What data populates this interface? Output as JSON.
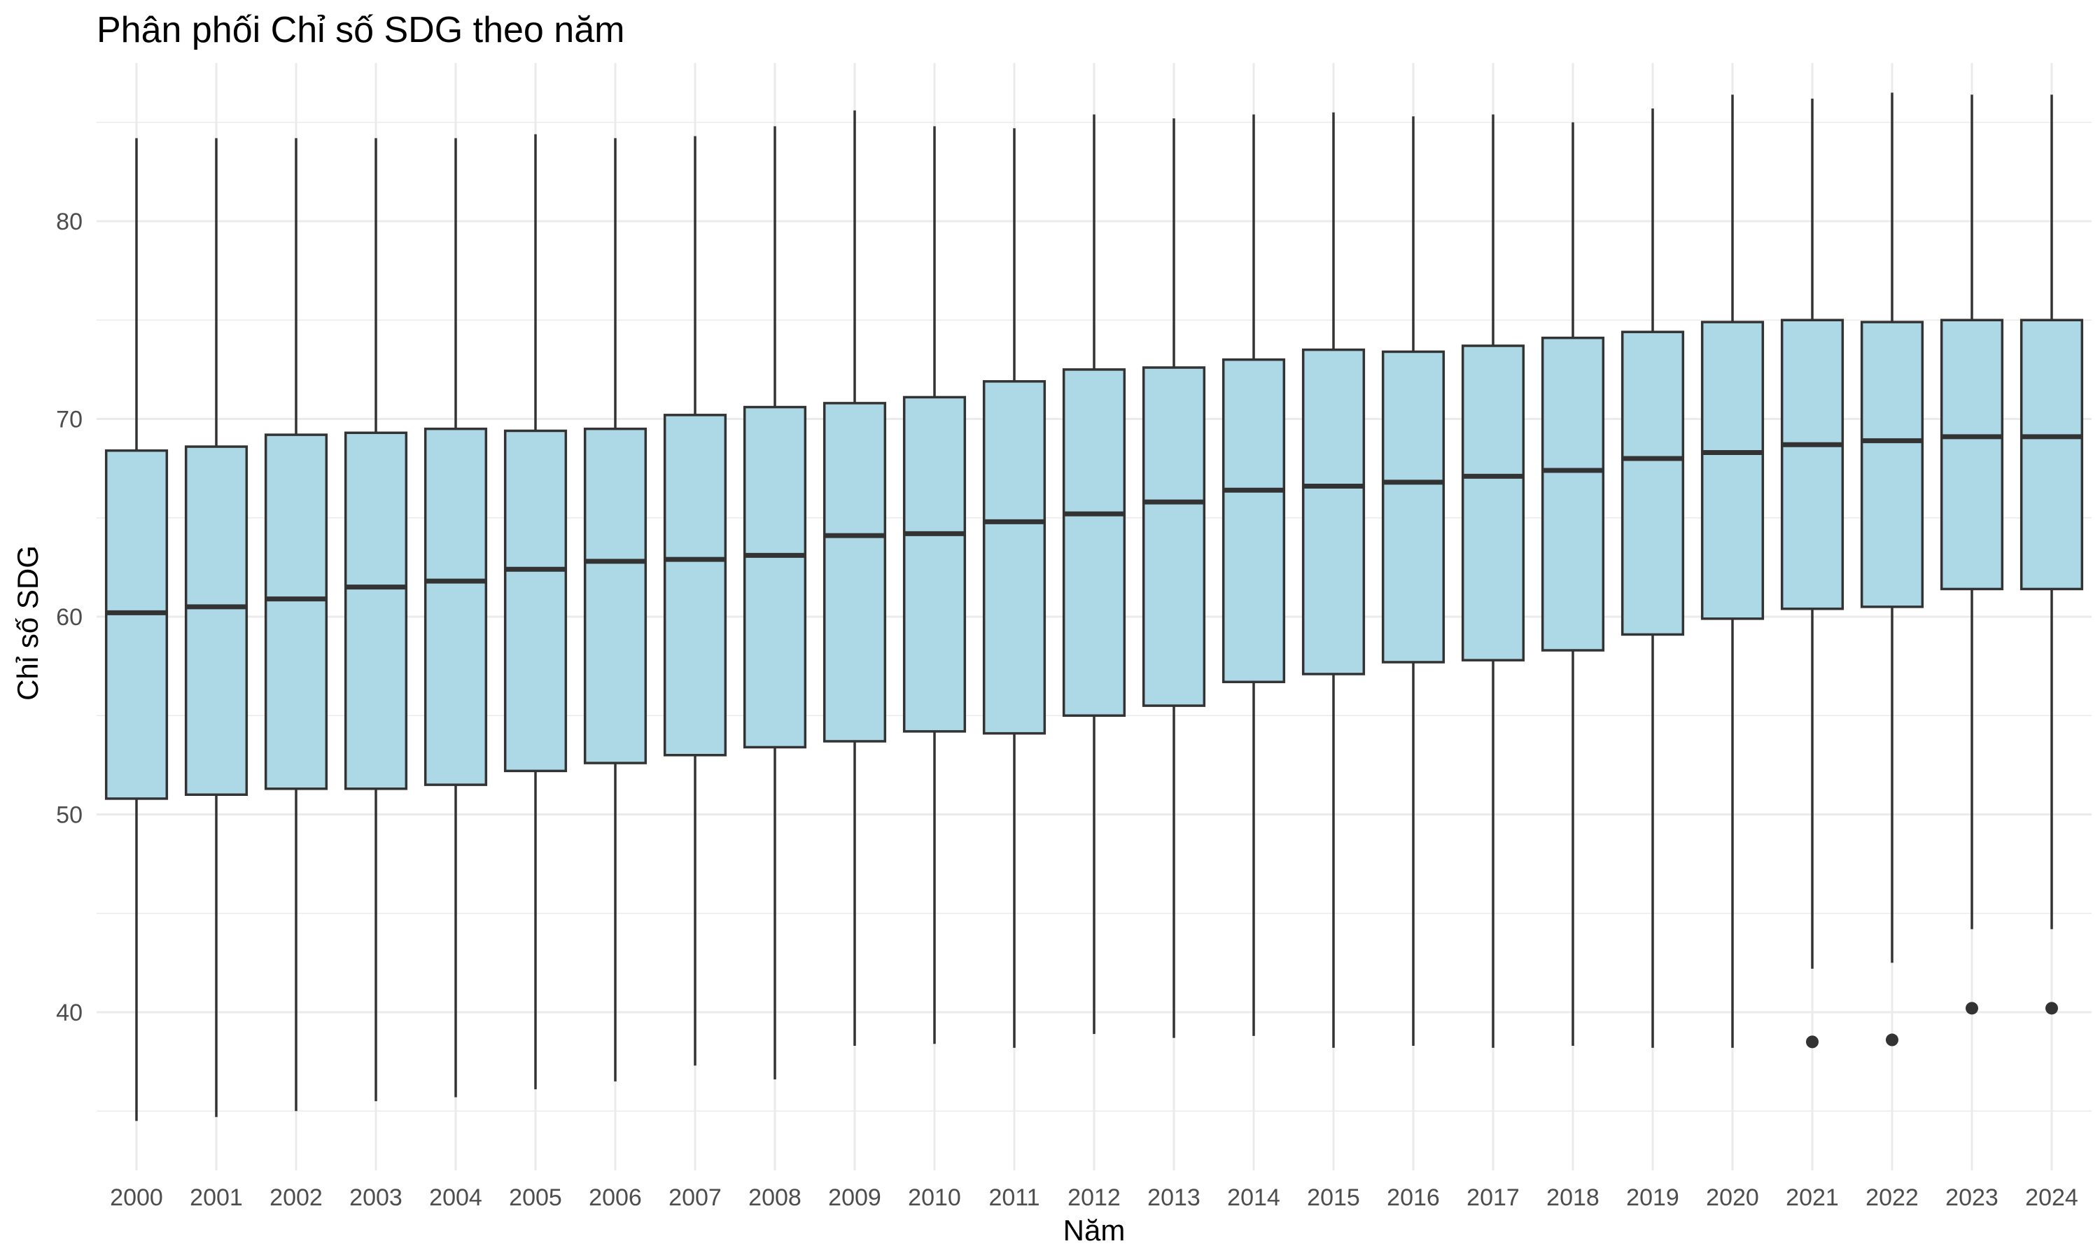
{
  "chart_data": {
    "type": "box",
    "title": "Phân phối Chỉ số SDG theo năm",
    "xlabel": "Năm",
    "ylabel": "Chỉ số SDG",
    "ylim": [
      32,
      88
    ],
    "y_ticks": [
      40,
      50,
      60,
      70,
      80
    ],
    "grid": true,
    "colors": {
      "box_fill": "#add8e6",
      "box_stroke": "#333333",
      "grid": "#ebebeb"
    },
    "categories": [
      "2000",
      "2001",
      "2002",
      "2003",
      "2004",
      "2005",
      "2006",
      "2007",
      "2008",
      "2009",
      "2010",
      "2011",
      "2012",
      "2013",
      "2014",
      "2015",
      "2016",
      "2017",
      "2018",
      "2019",
      "2020",
      "2021",
      "2022",
      "2023",
      "2024"
    ],
    "boxes": [
      {
        "min": 34.5,
        "q1": 50.8,
        "median": 60.2,
        "q3": 68.4,
        "max": 84.2,
        "outliers": []
      },
      {
        "min": 34.7,
        "q1": 51.0,
        "median": 60.5,
        "q3": 68.6,
        "max": 84.2,
        "outliers": []
      },
      {
        "min": 35.0,
        "q1": 51.3,
        "median": 60.9,
        "q3": 69.2,
        "max": 84.2,
        "outliers": []
      },
      {
        "min": 35.5,
        "q1": 51.3,
        "median": 61.5,
        "q3": 69.3,
        "max": 84.2,
        "outliers": []
      },
      {
        "min": 35.7,
        "q1": 51.5,
        "median": 61.8,
        "q3": 69.5,
        "max": 84.2,
        "outliers": []
      },
      {
        "min": 36.1,
        "q1": 52.2,
        "median": 62.4,
        "q3": 69.4,
        "max": 84.4,
        "outliers": []
      },
      {
        "min": 36.5,
        "q1": 52.6,
        "median": 62.8,
        "q3": 69.5,
        "max": 84.2,
        "outliers": []
      },
      {
        "min": 37.3,
        "q1": 53.0,
        "median": 62.9,
        "q3": 70.2,
        "max": 84.3,
        "outliers": []
      },
      {
        "min": 36.6,
        "q1": 53.4,
        "median": 63.1,
        "q3": 70.6,
        "max": 84.8,
        "outliers": []
      },
      {
        "min": 38.3,
        "q1": 53.7,
        "median": 64.1,
        "q3": 70.8,
        "max": 85.6,
        "outliers": []
      },
      {
        "min": 38.4,
        "q1": 54.2,
        "median": 64.2,
        "q3": 71.1,
        "max": 84.8,
        "outliers": []
      },
      {
        "min": 38.2,
        "q1": 54.1,
        "median": 64.8,
        "q3": 71.9,
        "max": 84.7,
        "outliers": []
      },
      {
        "min": 38.9,
        "q1": 55.0,
        "median": 65.2,
        "q3": 72.5,
        "max": 85.4,
        "outliers": []
      },
      {
        "min": 38.7,
        "q1": 55.5,
        "median": 65.8,
        "q3": 72.6,
        "max": 85.2,
        "outliers": []
      },
      {
        "min": 38.8,
        "q1": 56.7,
        "median": 66.4,
        "q3": 73.0,
        "max": 85.4,
        "outliers": []
      },
      {
        "min": 38.2,
        "q1": 57.1,
        "median": 66.6,
        "q3": 73.5,
        "max": 85.5,
        "outliers": []
      },
      {
        "min": 38.3,
        "q1": 57.7,
        "median": 66.8,
        "q3": 73.4,
        "max": 85.3,
        "outliers": []
      },
      {
        "min": 38.2,
        "q1": 57.8,
        "median": 67.1,
        "q3": 73.7,
        "max": 85.4,
        "outliers": []
      },
      {
        "min": 38.3,
        "q1": 58.3,
        "median": 67.4,
        "q3": 74.1,
        "max": 85.0,
        "outliers": []
      },
      {
        "min": 38.2,
        "q1": 59.1,
        "median": 68.0,
        "q3": 74.4,
        "max": 85.7,
        "outliers": []
      },
      {
        "min": 38.2,
        "q1": 59.9,
        "median": 68.3,
        "q3": 74.9,
        "max": 86.4,
        "outliers": []
      },
      {
        "min": 42.2,
        "q1": 60.4,
        "median": 68.7,
        "q3": 75.0,
        "max": 86.2,
        "outliers": [
          38.5
        ]
      },
      {
        "min": 42.5,
        "q1": 60.5,
        "median": 68.9,
        "q3": 74.9,
        "max": 86.5,
        "outliers": [
          38.6
        ]
      },
      {
        "min": 44.2,
        "q1": 61.4,
        "median": 69.1,
        "q3": 75.0,
        "max": 86.4,
        "outliers": [
          40.2
        ]
      },
      {
        "min": 44.2,
        "q1": 61.4,
        "median": 69.1,
        "q3": 75.0,
        "max": 86.4,
        "outliers": [
          40.2
        ]
      }
    ]
  }
}
